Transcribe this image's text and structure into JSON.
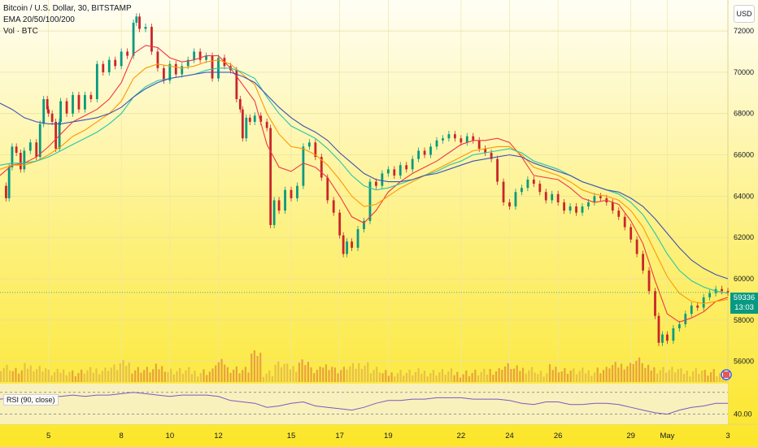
{
  "header": {
    "symbol": "Bitcoin / U.S. Dollar, 30, BITSTAMP",
    "ema": "EMA 20/50/100/200",
    "volume": "Vol · BTC",
    "currency_button": "USD"
  },
  "rsi": {
    "label": "RSI (90, close)",
    "level": "40.00"
  },
  "last_price": {
    "price": "59336",
    "countdown": "13:03"
  },
  "colors": {
    "background_top": "#fffef5",
    "background_bottom": "#fce629",
    "candle_up": "#089981",
    "candle_down": "#c9252b",
    "ema20": "#f23645",
    "ema50": "#ff9800",
    "ema100": "#26c6a8",
    "ema200": "#3f51b5",
    "rsi_line": "#7e57c2"
  },
  "chart_data": {
    "type": "line",
    "title": "Bitcoin / U.S. Dollar, 30, BITSTAMP",
    "ylim": [
      55000,
      73500
    ],
    "y_ticks": [
      56000,
      58000,
      60000,
      62000,
      64000,
      66000,
      68000,
      70000,
      72000
    ],
    "x_ticks": [
      "5",
      "8",
      "10",
      "12",
      "15",
      "17",
      "19",
      "22",
      "24",
      "26",
      "29",
      "May",
      "3"
    ],
    "x_tick_index": [
      4,
      10,
      14,
      18,
      24,
      28,
      32,
      38,
      42,
      46,
      52,
      55,
      60
    ],
    "grid": true,
    "series": [
      {
        "name": "BTCUSD",
        "values": [
          64500,
          65800,
          65200,
          66500,
          67600,
          67900,
          68500,
          68200,
          68800,
          69600,
          70800,
          72600,
          71700,
          70900,
          69700,
          70300,
          70900,
          71300,
          70800,
          68800,
          67800,
          67000,
          63500,
          63800,
          65500,
          66700,
          64500,
          63800,
          62300,
          61500,
          62800,
          64500,
          65300,
          65200,
          65600,
          65900,
          66300,
          66700,
          67100,
          66900,
          66600,
          66900,
          66200,
          64800,
          63900,
          64800,
          64900,
          63800,
          63100,
          63600,
          64100,
          63300,
          61800,
          60200,
          57800,
          56800,
          57700,
          58500,
          58900,
          59600,
          59336
        ],
        "points": [
          [
            0,
            64500
          ],
          [
            0.5,
            63900
          ],
          [
            0.75,
            65400
          ],
          [
            1,
            66400
          ],
          [
            1.35,
            66100
          ],
          [
            1.7,
            65300
          ],
          [
            2,
            66200
          ],
          [
            2.5,
            66600
          ],
          [
            3,
            65900
          ],
          [
            3.3,
            67500
          ],
          [
            3.6,
            68700
          ],
          [
            3.9,
            68200
          ],
          [
            4,
            68000
          ],
          [
            4.3,
            67600
          ],
          [
            4.6,
            66300
          ],
          [
            4.9,
            67600
          ],
          [
            5,
            68600
          ],
          [
            5.5,
            68000
          ],
          [
            6,
            68900
          ],
          [
            6.5,
            68200
          ],
          [
            7,
            68900
          ],
          [
            7.5,
            68700
          ],
          [
            8,
            70400
          ],
          [
            8.5,
            70000
          ],
          [
            9,
            70600
          ],
          [
            9.5,
            70300
          ],
          [
            10,
            71000
          ],
          [
            10.5,
            70800
          ],
          [
            11,
            72400
          ],
          [
            11.25,
            72700
          ],
          [
            11.5,
            72100
          ],
          [
            12,
            72200
          ],
          [
            12.5,
            71000
          ],
          [
            13,
            70200
          ],
          [
            13.5,
            69600
          ],
          [
            14,
            70400
          ],
          [
            14.5,
            69900
          ],
          [
            15,
            70300
          ],
          [
            15.5,
            70600
          ],
          [
            16,
            71000
          ],
          [
            16.5,
            70600
          ],
          [
            17,
            70800
          ],
          [
            17.5,
            69700
          ],
          [
            18,
            70700
          ],
          [
            18.5,
            70300
          ],
          [
            19,
            70100
          ],
          [
            19.5,
            68700
          ],
          [
            19.8,
            68200
          ],
          [
            20,
            66800
          ],
          [
            20.3,
            67800
          ],
          [
            20.6,
            67600
          ],
          [
            21,
            67900
          ],
          [
            21.5,
            67600
          ],
          [
            22,
            67300
          ],
          [
            22.3,
            62600
          ],
          [
            22.6,
            63800
          ],
          [
            23,
            63300
          ],
          [
            23.5,
            64300
          ],
          [
            24,
            63900
          ],
          [
            24.5,
            64500
          ],
          [
            25,
            66400
          ],
          [
            25.5,
            66600
          ],
          [
            26,
            65900
          ],
          [
            26.5,
            64900
          ],
          [
            27,
            63800
          ],
          [
            27.5,
            63200
          ],
          [
            28,
            62100
          ],
          [
            28.3,
            61200
          ],
          [
            28.6,
            61800
          ],
          [
            29,
            61500
          ],
          [
            29.5,
            62400
          ],
          [
            30,
            62800
          ],
          [
            30.5,
            64700
          ],
          [
            31,
            64500
          ],
          [
            31.5,
            65100
          ],
          [
            32,
            65300
          ],
          [
            32.5,
            65000
          ],
          [
            33,
            65500
          ],
          [
            33.5,
            65300
          ],
          [
            34,
            65800
          ],
          [
            34.5,
            66200
          ],
          [
            35,
            66000
          ],
          [
            35.5,
            66400
          ],
          [
            36,
            66700
          ],
          [
            36.5,
            66800
          ],
          [
            37,
            67000
          ],
          [
            37.5,
            66800
          ],
          [
            38,
            66600
          ],
          [
            38.5,
            66900
          ],
          [
            39,
            66700
          ],
          [
            39.5,
            66300
          ],
          [
            40,
            66100
          ],
          [
            40.5,
            65800
          ],
          [
            41,
            64700
          ],
          [
            41.5,
            63700
          ],
          [
            42,
            63500
          ],
          [
            42.5,
            64200
          ],
          [
            43,
            64400
          ],
          [
            43.5,
            64800
          ],
          [
            44,
            64600
          ],
          [
            44.5,
            64200
          ],
          [
            45,
            63800
          ],
          [
            45.5,
            64100
          ],
          [
            46,
            63700
          ],
          [
            46.5,
            63300
          ],
          [
            47,
            63500
          ],
          [
            47.5,
            63200
          ],
          [
            48,
            63500
          ],
          [
            48.5,
            63700
          ],
          [
            49,
            64000
          ],
          [
            49.5,
            63900
          ],
          [
            50,
            63700
          ],
          [
            50.5,
            63300
          ],
          [
            51,
            63000
          ],
          [
            51.5,
            62500
          ],
          [
            52,
            61900
          ],
          [
            52.5,
            61200
          ],
          [
            53,
            60400
          ],
          [
            53.5,
            59400
          ],
          [
            54,
            58200
          ],
          [
            54.3,
            56900
          ],
          [
            54.6,
            57300
          ],
          [
            55,
            57000
          ],
          [
            55.5,
            57600
          ],
          [
            56,
            57800
          ],
          [
            56.5,
            58300
          ],
          [
            57,
            58700
          ],
          [
            57.5,
            58600
          ],
          [
            58,
            59100
          ],
          [
            58.5,
            59300
          ],
          [
            59,
            59500
          ],
          [
            59.5,
            59400
          ],
          [
            60,
            59336
          ]
        ]
      },
      {
        "name": "EMA 20",
        "values": [
          65000,
          65500,
          65600,
          65900,
          66400,
          67000,
          67600,
          67900,
          68200,
          68700,
          69500,
          70900,
          71300,
          71200,
          70700,
          70500,
          70600,
          70800,
          70800,
          70200,
          69400,
          68600,
          66500,
          65400,
          65200,
          65600,
          65400,
          64900,
          64000,
          63000,
          62700,
          63300,
          64200,
          64700,
          65100,
          65400,
          65700,
          66100,
          66500,
          66700,
          66700,
          66800,
          66600,
          65900,
          65000,
          64900,
          64800,
          64400,
          63900,
          63700,
          63800,
          63600,
          62800,
          61700,
          59900,
          58300,
          57900,
          58100,
          58400,
          58900,
          59100
        ]
      },
      {
        "name": "EMA 50",
        "values": [
          65300,
          65500,
          65500,
          65700,
          66000,
          66400,
          66900,
          67200,
          67600,
          68000,
          68600,
          69700,
          70200,
          70400,
          70300,
          70200,
          70300,
          70500,
          70600,
          70400,
          69900,
          69400,
          68000,
          67000,
          66400,
          66300,
          66000,
          65500,
          64800,
          64000,
          63500,
          63600,
          64000,
          64400,
          64700,
          65000,
          65300,
          65600,
          65900,
          66200,
          66300,
          66400,
          66400,
          66000,
          65400,
          65200,
          65000,
          64700,
          64300,
          64100,
          64000,
          63800,
          63300,
          62500,
          61300,
          60100,
          59300,
          58900,
          58800,
          58900,
          59000
        ]
      },
      {
        "name": "EMA 100",
        "values": [
          65500,
          65600,
          65600,
          65700,
          65900,
          66200,
          66500,
          66800,
          67100,
          67500,
          68000,
          68800,
          69300,
          69600,
          69700,
          69800,
          69900,
          70100,
          70200,
          70200,
          70000,
          69700,
          68800,
          68000,
          67400,
          67100,
          66800,
          66300,
          65700,
          65000,
          64500,
          64300,
          64400,
          64600,
          64800,
          65000,
          65200,
          65500,
          65700,
          66000,
          66100,
          66200,
          66300,
          66100,
          65700,
          65500,
          65300,
          65000,
          64700,
          64500,
          64300,
          64100,
          63700,
          63100,
          62200,
          61200,
          60400,
          59900,
          59600,
          59400,
          59300
        ]
      },
      {
        "name": "EMA 200",
        "values": [
          68500,
          68200,
          67800,
          67600,
          67500,
          67500,
          67600,
          67700,
          67800,
          68000,
          68300,
          68800,
          69200,
          69500,
          69700,
          69800,
          69900,
          70000,
          70000,
          70000,
          69800,
          69500,
          68900,
          68300,
          67800,
          67400,
          67100,
          66700,
          66100,
          65600,
          65100,
          64800,
          64700,
          64700,
          64800,
          65000,
          65100,
          65300,
          65500,
          65700,
          65800,
          65900,
          66000,
          65900,
          65600,
          65400,
          65200,
          65000,
          64700,
          64500,
          64300,
          64200,
          63900,
          63500,
          62900,
          62200,
          61500,
          60900,
          60500,
          60200,
          60000
        ]
      },
      {
        "name": "RSI",
        "values": [
          51,
          52,
          51,
          52,
          53,
          53,
          54,
          53,
          54,
          54,
          55,
          56,
          55,
          54,
          53,
          54,
          54,
          54,
          53,
          50,
          49,
          48,
          45,
          46,
          48,
          49,
          46,
          45,
          44,
          43,
          45,
          48,
          50,
          50,
          51,
          51,
          52,
          52,
          52,
          51,
          51,
          51,
          50,
          48,
          47,
          49,
          49,
          47,
          47,
          48,
          48,
          47,
          45,
          43,
          41,
          40,
          43,
          45,
          46,
          48,
          48
        ]
      }
    ],
    "rsi_levels": [
      70,
      40
    ]
  }
}
